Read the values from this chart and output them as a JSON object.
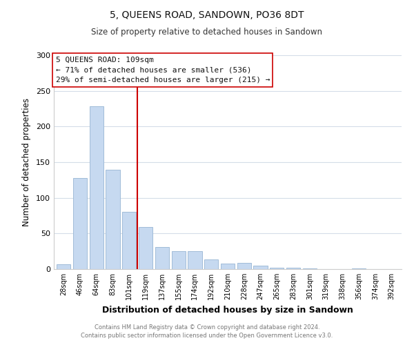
{
  "title": "5, QUEENS ROAD, SANDOWN, PO36 8DT",
  "subtitle": "Size of property relative to detached houses in Sandown",
  "xlabel": "Distribution of detached houses by size in Sandown",
  "ylabel": "Number of detached properties",
  "bar_labels": [
    "28sqm",
    "46sqm",
    "64sqm",
    "83sqm",
    "101sqm",
    "119sqm",
    "137sqm",
    "155sqm",
    "174sqm",
    "192sqm",
    "210sqm",
    "228sqm",
    "247sqm",
    "265sqm",
    "283sqm",
    "301sqm",
    "319sqm",
    "338sqm",
    "356sqm",
    "374sqm",
    "392sqm"
  ],
  "bar_values": [
    7,
    128,
    228,
    139,
    80,
    59,
    31,
    25,
    25,
    14,
    8,
    9,
    5,
    2,
    2,
    1,
    0,
    0,
    1,
    0,
    0
  ],
  "bar_color": "#c6d9f0",
  "bar_edge_color": "#a0bcd8",
  "vline_x": 4.5,
  "vline_color": "#cc0000",
  "ylim": [
    0,
    300
  ],
  "yticks": [
    0,
    50,
    100,
    150,
    200,
    250,
    300
  ],
  "annotation_title": "5 QUEENS ROAD: 109sqm",
  "annotation_line1": "← 71% of detached houses are smaller (536)",
  "annotation_line2": "29% of semi-detached houses are larger (215) →",
  "footer_line1": "Contains HM Land Registry data © Crown copyright and database right 2024.",
  "footer_line2": "Contains public sector information licensed under the Open Government Licence v3.0.",
  "background_color": "#ffffff",
  "grid_color": "#d4dde8"
}
